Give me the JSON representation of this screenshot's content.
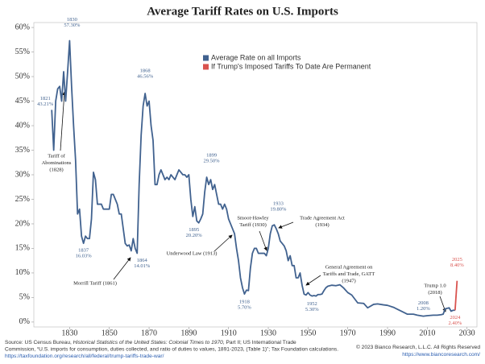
{
  "chart_data": {
    "type": "line",
    "title": "Average Tariff Rates on U.S. Imports",
    "xlim": [
      1812,
      2035
    ],
    "xticks": [
      1830,
      1850,
      1870,
      1890,
      1910,
      1930,
      1950,
      1970,
      1990,
      2010,
      2030
    ],
    "ylim": [
      -1,
      61
    ],
    "yticks": [
      {
        "value": 0,
        "label": "0%"
      },
      {
        "value": 5,
        "label": "5%"
      },
      {
        "value": 10,
        "label": "10%"
      },
      {
        "value": 15,
        "label": "15%"
      },
      {
        "value": 20,
        "label": "20%"
      },
      {
        "value": 25,
        "label": "25%"
      },
      {
        "value": 30,
        "label": "30%"
      },
      {
        "value": 35,
        "label": "35%"
      },
      {
        "value": 40,
        "label": "40%"
      },
      {
        "value": 45,
        "label": "45%"
      },
      {
        "value": 50,
        "label": "50%"
      },
      {
        "value": 55,
        "label": "55%"
      },
      {
        "value": 60,
        "label": "60%"
      }
    ],
    "legend": "top",
    "series": [
      {
        "name": "Average Rate on all Imports",
        "color": "#41628f",
        "x": [
          1821,
          1822,
          1823,
          1824,
          1825,
          1826,
          1827,
          1828,
          1829,
          1830,
          1831,
          1832,
          1833,
          1834,
          1835,
          1836,
          1837,
          1838,
          1839,
          1840,
          1841,
          1842,
          1843,
          1844,
          1845,
          1846,
          1847,
          1848,
          1849,
          1850,
          1851,
          1852,
          1853,
          1854,
          1855,
          1856,
          1857,
          1858,
          1859,
          1860,
          1861,
          1862,
          1863,
          1864,
          1865,
          1866,
          1867,
          1868,
          1869,
          1870,
          1871,
          1872,
          1873,
          1874,
          1875,
          1876,
          1877,
          1878,
          1879,
          1880,
          1881,
          1882,
          1883,
          1884,
          1885,
          1886,
          1887,
          1888,
          1889,
          1890,
          1891,
          1892,
          1893,
          1894,
          1895,
          1896,
          1897,
          1898,
          1899,
          1900,
          1901,
          1902,
          1903,
          1904,
          1905,
          1906,
          1907,
          1908,
          1909,
          1910,
          1911,
          1912,
          1913,
          1914,
          1915,
          1916,
          1917,
          1918,
          1919,
          1920,
          1921,
          1922,
          1923,
          1924,
          1925,
          1926,
          1927,
          1928,
          1929,
          1930,
          1931,
          1932,
          1933,
          1934,
          1935,
          1936,
          1937,
          1938,
          1939,
          1940,
          1941,
          1942,
          1943,
          1944,
          1945,
          1946,
          1947,
          1948,
          1949,
          1950,
          1951,
          1952,
          1953,
          1954,
          1955,
          1956,
          1957,
          1958,
          1959,
          1960,
          1962,
          1964,
          1966,
          1968,
          1970,
          1972,
          1975,
          1978,
          1980,
          1983,
          1985,
          1988,
          1990,
          1993,
          1995,
          1998,
          2000,
          2003,
          2005,
          2008,
          2010,
          2013,
          2015,
          2017,
          2018,
          2019,
          2020,
          2021,
          2022,
          2023,
          2024
        ],
        "values": [
          43.21,
          35,
          45,
          47.5,
          48,
          45,
          51,
          45,
          51,
          57.3,
          48,
          40,
          33,
          22,
          23,
          17.5,
          16.03,
          17.5,
          17,
          17,
          21,
          30.5,
          29,
          24,
          24,
          24,
          23,
          23,
          23,
          23,
          26,
          26,
          25,
          24,
          22,
          22,
          19,
          16,
          15.5,
          15.7,
          14.5,
          17,
          15,
          14.01,
          28,
          38,
          44,
          46.56,
          44,
          45,
          40,
          37,
          28,
          28,
          30,
          31,
          30,
          29,
          29.5,
          29,
          30,
          29.5,
          29,
          30,
          31,
          30.5,
          30,
          30,
          29.5,
          30,
          25,
          21.5,
          23.5,
          20.6,
          20.2,
          21,
          22,
          26.5,
          29.5,
          28,
          29,
          27,
          28,
          26,
          24,
          24,
          23,
          24,
          23,
          21,
          20,
          19,
          18,
          15,
          12.5,
          9,
          7,
          5.7,
          6.5,
          6.4,
          11,
          14,
          15,
          15,
          14,
          14,
          14,
          14,
          13.5,
          15,
          18,
          19.6,
          19.8,
          19,
          18,
          16.5,
          16,
          15.5,
          14.5,
          12.5,
          13.5,
          11.5,
          11.5,
          9,
          9,
          10,
          7.5,
          5.7,
          5.5,
          6,
          5.5,
          5.3,
          5.4,
          5.3,
          5.6,
          5.6,
          5.7,
          6.4,
          7,
          7.3,
          7.5,
          7.4,
          7.6,
          6.9,
          6,
          5.5,
          3.9,
          3.8,
          2.9,
          3.6,
          3.7,
          3.5,
          3.4,
          3,
          2.6,
          2,
          1.6,
          1.6,
          1.4,
          1.2,
          1.3,
          1.4,
          1.4,
          1.5,
          1.6,
          2.7,
          2.8,
          2.9,
          2.2,
          2.4,
          2.4
        ]
      },
      {
        "name": "If Trump's Imposed Tariffs To Date Are Permanent",
        "color": "#d9534f",
        "x": [
          2024,
          2025
        ],
        "values": [
          2.4,
          8.4
        ]
      }
    ],
    "point_labels": [
      {
        "x": 1821,
        "y": 43.21,
        "label": "43.21%"
      },
      {
        "x": 1830,
        "y": 57.3,
        "label": "57.30%"
      },
      {
        "x": 1837,
        "y": 16.03,
        "label": "16.03%"
      },
      {
        "x": 1864,
        "y": 14.01,
        "label": "14.01%"
      },
      {
        "x": 1868,
        "y": 46.56,
        "label": "46.56%"
      },
      {
        "x": 1895,
        "y": 20.2,
        "label": "20.20%"
      },
      {
        "x": 1899,
        "y": 29.5,
        "label": "29.50%"
      },
      {
        "x": 1918,
        "y": 5.7,
        "label": "5.70%"
      },
      {
        "x": 1933,
        "y": 19.8,
        "label": "19.80%"
      },
      {
        "x": 1952,
        "y": 5.3,
        "label": "5.30%"
      },
      {
        "x": 2008,
        "y": 1.2,
        "label": "1.20%"
      },
      {
        "x": 2024,
        "y": 2.4,
        "label": "2.40%"
      },
      {
        "x": 2025,
        "y": 8.4,
        "label": "8.40%"
      }
    ],
    "annotations": [
      {
        "lines": [
          "Tariff of",
          "Abominations",
          "(1828)"
        ]
      },
      {
        "lines": [
          "Morrill Tariff (1861)"
        ]
      },
      {
        "lines": [
          "Underwood Law (1913)"
        ]
      },
      {
        "lines": [
          "Smoot-Hawley",
          "Tariff (1930)"
        ]
      },
      {
        "lines": [
          "Trade Agreement Act",
          "(1934)"
        ]
      },
      {
        "lines": [
          "General Agreement on",
          "Tariffs and Trade, GATT",
          "(1947)"
        ]
      },
      {
        "lines": [
          "Trump 1.0",
          "(2018)"
        ]
      }
    ]
  },
  "footer": {
    "source": [
      [
        "Source: US Census Bureau, ",
        "Historical Statistics of the United States: Colonial Times to 1970",
        ", Part II; US International Trade"
      ],
      [
        "Commission, “U.S. imports for consumption, duties collected, and ratio of duties to values, 1891-2023, (Table 1)”; Tax Foundation calculations."
      ],
      [
        "https://taxfoundation.org/research/all/federal/trump-tariffs-trade-war/"
      ]
    ],
    "copyright": "© 2023 Bianco Research, L.L.C. All Rights Reserved",
    "website": "https://www.biancoresearch.com/"
  }
}
